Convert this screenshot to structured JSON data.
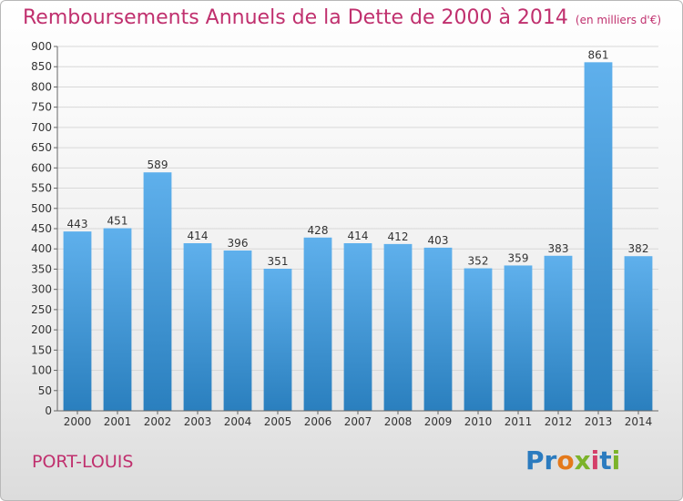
{
  "header": {
    "title": "Remboursements Annuels de la Dette de 2000 à 2014",
    "unit": "(en milliers d'€)"
  },
  "footer": {
    "city": "PORT-LOUIS",
    "logo": "Proxiti"
  },
  "colors": {
    "title": "#c0306e",
    "bar_top": "#5fb0ec",
    "bar_bottom": "#2a7fbe",
    "grid": "#d8d8d8"
  },
  "chart_data": {
    "type": "bar",
    "title": "Remboursements Annuels de la Dette de 2000 à 2014",
    "xlabel": "",
    "ylabel": "",
    "categories": [
      "2000",
      "2001",
      "2002",
      "2003",
      "2004",
      "2005",
      "2006",
      "2007",
      "2008",
      "2009",
      "2010",
      "2011",
      "2012",
      "2013",
      "2014"
    ],
    "values": [
      443,
      451,
      589,
      414,
      396,
      351,
      428,
      414,
      412,
      403,
      352,
      359,
      383,
      861,
      382
    ],
    "ylim": [
      0,
      900
    ],
    "yticks": [
      0,
      50,
      100,
      150,
      200,
      250,
      300,
      350,
      400,
      450,
      500,
      550,
      600,
      650,
      700,
      750,
      800,
      850,
      900
    ],
    "grid": true,
    "legend": "none"
  }
}
